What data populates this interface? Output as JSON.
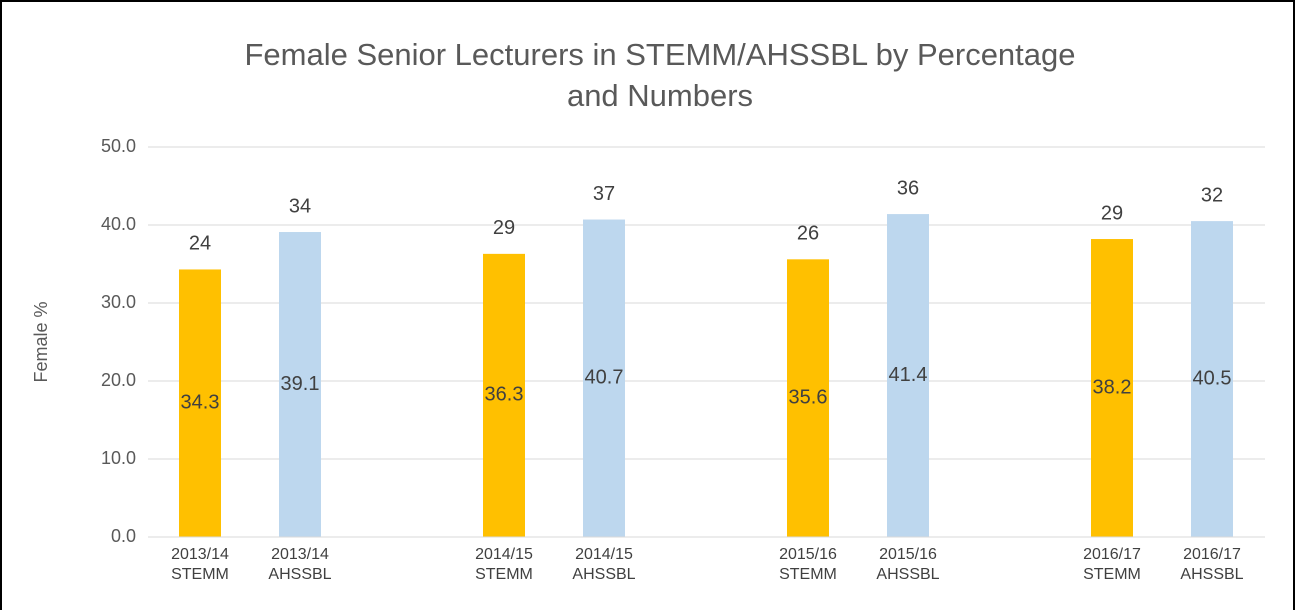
{
  "chart_data": {
    "type": "bar",
    "title": [
      "Female Senior Lecturers in STEMM/AHSSBL by Percentage",
      "and Numbers"
    ],
    "y_label": "Female %",
    "categories": [
      [
        "2013/14",
        "STEMM"
      ],
      [
        "2013/14",
        "AHSSBL"
      ],
      [
        "2014/15",
        "STEMM"
      ],
      [
        "2014/15",
        "AHSSBL"
      ],
      [
        "2015/16",
        "STEMM"
      ],
      [
        "2015/16",
        "AHSSBL"
      ],
      [
        "2016/17",
        "STEMM"
      ],
      [
        "2016/17",
        "AHSSBL"
      ]
    ],
    "values": [
      34.3,
      39.1,
      36.3,
      40.7,
      35.6,
      41.4,
      38.2,
      40.5
    ],
    "counts": [
      24,
      34,
      29,
      37,
      26,
      36,
      29,
      32
    ],
    "colors": [
      "#FFC000",
      "#BDD7EE",
      "#FFC000",
      "#BDD7EE",
      "#FFC000",
      "#BDD7EE",
      "#FFC000",
      "#BDD7EE"
    ],
    "ylim": [
      0,
      50
    ],
    "yticks": [
      {
        "value": 0,
        "label": "0.0"
      },
      {
        "value": 10,
        "label": "10.0"
      },
      {
        "value": 20,
        "label": "20.0"
      },
      {
        "value": 30,
        "label": "30.0"
      },
      {
        "value": 40,
        "label": "40.0"
      },
      {
        "value": 50,
        "label": "50.0"
      }
    ],
    "grid": true
  }
}
